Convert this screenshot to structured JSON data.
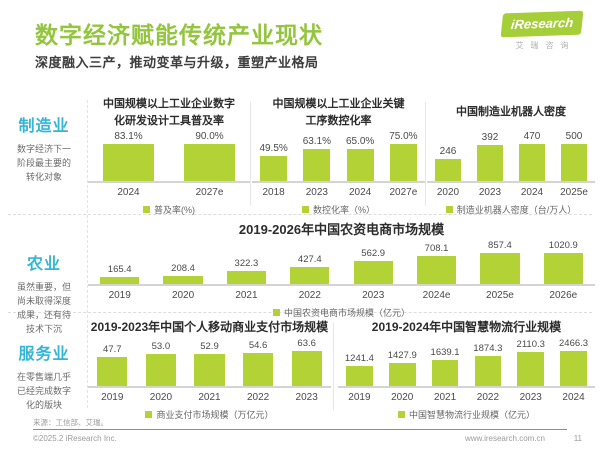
{
  "header": {
    "title": "数字经济赋能传统产业现状",
    "subtitle": "深度融入三产，推动变革与升级，重塑产业格局",
    "logo_text": "iResearch",
    "logo_subtext": "艾瑞咨询"
  },
  "colors": {
    "title_green": "#94c53e",
    "bar_green": "#b3d236",
    "sidebar_cyan": "#35b5d6"
  },
  "sidebar": {
    "sections": [
      {
        "label": "制造业",
        "desc": "数字经济下一阶段最主要的转化对象"
      },
      {
        "label": "农业",
        "desc": "虽然重要，但尚未取得深度成果，还有待技术下沉"
      },
      {
        "label": "服务业",
        "desc": "在零售端几乎已经完成数字化的版块"
      }
    ]
  },
  "chart_data": [
    {
      "type": "bar",
      "title": "中国规模以上工业企业数字化研发设计工具普及率",
      "categories": [
        "2024",
        "2027e"
      ],
      "values": [
        83.1,
        90.0
      ],
      "value_labels": [
        "83.1%",
        "90.0%"
      ],
      "legend": "普及率(%)",
      "ylabel": "普及率(%)",
      "ylim": [
        0,
        100
      ],
      "grid": false,
      "legend_position": "bottom"
    },
    {
      "type": "bar",
      "title": "中国规模以上工业企业关键工序数控化率",
      "categories": [
        "2018",
        "2023",
        "2024",
        "2027e"
      ],
      "values": [
        49.5,
        63.1,
        65.0,
        75.0
      ],
      "value_labels": [
        "49.5%",
        "63.1%",
        "65.0%",
        "75.0%"
      ],
      "legend": "数控化率（%）",
      "ylabel": "数控化率（%）",
      "ylim": [
        0,
        100
      ],
      "grid": false,
      "legend_position": "bottom"
    },
    {
      "type": "bar",
      "title": "中国制造业机器人密度",
      "categories": [
        "2020",
        "2023",
        "2024",
        "2025e"
      ],
      "values": [
        246,
        392,
        470,
        500
      ],
      "value_labels": [
        "246",
        "392",
        "470",
        "500"
      ],
      "legend": "制造业机器人密度（台/万人）",
      "ylabel": "制造业机器人密度（台/万人）",
      "ylim": [
        0,
        550
      ],
      "grid": false,
      "legend_position": "bottom"
    },
    {
      "type": "bar",
      "title": "2019-2026年中国农资电商市场规模",
      "categories": [
        "2019",
        "2020",
        "2021",
        "2022",
        "2023",
        "2024e",
        "2025e",
        "2026e"
      ],
      "values": [
        165.4,
        208.4,
        322.3,
        427.4,
        562.9,
        708.1,
        857.4,
        1020.9
      ],
      "value_labels": [
        "165.4",
        "208.4",
        "322.3",
        "427.4",
        "562.9",
        "708.1",
        "857.4",
        "1020.9"
      ],
      "legend": "中国农资电商市场规模（亿元）",
      "ylabel": "市场规模（亿元）",
      "ylim": [
        0,
        1100
      ],
      "grid": false,
      "legend_position": "bottom"
    },
    {
      "type": "bar",
      "title": "2019-2023年中国个人移动商业支付市场规模",
      "categories": [
        "2019",
        "2020",
        "2021",
        "2022",
        "2023"
      ],
      "values": [
        47.7,
        53.0,
        52.9,
        54.6,
        63.6
      ],
      "value_labels": [
        "47.7",
        "53.0",
        "52.9",
        "54.6",
        "63.6"
      ],
      "legend": "商业支付市场规模（万亿元）",
      "ylabel": "市场规模（万亿元）",
      "ylim": [
        0,
        80
      ],
      "grid": false,
      "legend_position": "bottom"
    },
    {
      "type": "bar",
      "title": "2019-2024年中国智慧物流行业规模",
      "categories": [
        "2019",
        "2020",
        "2021",
        "2022",
        "2023",
        "2024"
      ],
      "values": [
        1241.4,
        1427.9,
        1639.1,
        1874.3,
        2110.3,
        2466.3
      ],
      "value_labels": [
        "1241.4",
        "1427.9",
        "1639.1",
        "1874.3",
        "2110.3",
        "2466.3"
      ],
      "legend": "中国智慧物流行业规模（亿元）",
      "ylabel": "行业规模（亿元）",
      "ylim": [
        0,
        3000
      ],
      "grid": false,
      "legend_position": "bottom"
    }
  ],
  "footer": {
    "source": "来源：工信部、艾瑞。",
    "copyright": "©2025.2 iResearch Inc.",
    "website": "www.iresearch.com.cn",
    "page": "11"
  }
}
